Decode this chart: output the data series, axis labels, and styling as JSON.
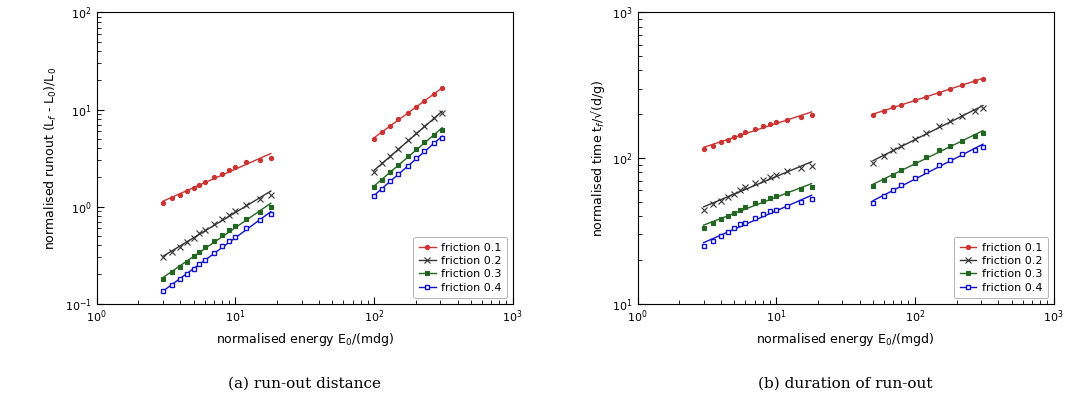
{
  "left": {
    "title": "(a) run-out distance",
    "xlabel": "normalised energy E$_0$/(mdg)",
    "ylabel": "normalised runout (L$_f$ - L$_0$)/L$_0$",
    "xlim": [
      1,
      1000
    ],
    "ylim": [
      0.1,
      100
    ],
    "series": [
      {
        "label": "friction 0.1",
        "color": "#cc3333",
        "marker": "o",
        "markersize": 3,
        "open": false,
        "group1_x": [
          3.0,
          3.5,
          4.0,
          4.5,
          5.0,
          5.5,
          6.0,
          7.0,
          8.0,
          9.0,
          10.0,
          12.0,
          15.0,
          18.0
        ],
        "group1_y": [
          1.1,
          1.22,
          1.33,
          1.45,
          1.57,
          1.68,
          1.8,
          2.0,
          2.18,
          2.37,
          2.55,
          2.85,
          3.05,
          3.2
        ],
        "group2_x": [
          100,
          115,
          130,
          150,
          175,
          200,
          230,
          270,
          310
        ],
        "group2_y": [
          5.0,
          5.9,
          6.8,
          7.9,
          9.3,
          10.7,
          12.3,
          14.3,
          16.5
        ]
      },
      {
        "label": "friction 0.2",
        "color": "#333333",
        "marker": "x",
        "markersize": 5,
        "open": false,
        "group1_x": [
          3.0,
          3.5,
          4.0,
          4.5,
          5.0,
          5.5,
          6.0,
          7.0,
          8.0,
          9.0,
          10.0,
          12.0,
          15.0,
          18.0
        ],
        "group1_y": [
          0.3,
          0.34,
          0.38,
          0.43,
          0.48,
          0.53,
          0.58,
          0.66,
          0.74,
          0.82,
          0.9,
          1.05,
          1.2,
          1.33
        ],
        "group2_x": [
          100,
          115,
          130,
          150,
          175,
          200,
          230,
          270,
          310
        ],
        "group2_y": [
          2.3,
          2.8,
          3.3,
          3.9,
          4.8,
          5.7,
          6.8,
          8.1,
          9.2
        ]
      },
      {
        "label": "friction 0.3",
        "color": "#226622",
        "marker": "s",
        "markersize": 3.5,
        "open": false,
        "group1_x": [
          3.0,
          3.5,
          4.0,
          4.5,
          5.0,
          5.5,
          6.0,
          7.0,
          8.0,
          9.0,
          10.0,
          12.0,
          15.0,
          18.0
        ],
        "group1_y": [
          0.18,
          0.21,
          0.24,
          0.27,
          0.31,
          0.34,
          0.38,
          0.44,
          0.51,
          0.57,
          0.63,
          0.75,
          0.88,
          0.99
        ],
        "group2_x": [
          100,
          115,
          130,
          150,
          175,
          200,
          230,
          270,
          310
        ],
        "group2_y": [
          1.6,
          1.9,
          2.25,
          2.7,
          3.3,
          3.9,
          4.6,
          5.5,
          6.2
        ]
      },
      {
        "label": "friction 0.4",
        "color": "#1111cc",
        "marker": "s",
        "markersize": 3.5,
        "open": true,
        "group1_x": [
          3.0,
          3.5,
          4.0,
          4.5,
          5.0,
          5.5,
          6.0,
          7.0,
          8.0,
          9.0,
          10.0,
          12.0,
          15.0,
          18.0
        ],
        "group1_y": [
          0.135,
          0.155,
          0.178,
          0.202,
          0.228,
          0.255,
          0.282,
          0.335,
          0.39,
          0.44,
          0.49,
          0.6,
          0.72,
          0.83
        ],
        "group2_x": [
          100,
          115,
          130,
          150,
          175,
          200,
          230,
          270,
          310
        ],
        "group2_y": [
          1.28,
          1.53,
          1.82,
          2.17,
          2.65,
          3.15,
          3.75,
          4.5,
          5.1
        ]
      }
    ]
  },
  "right": {
    "title": "(b) duration of run-out",
    "xlabel": "normalised energy E$_0$/(mgd)",
    "ylabel": "normalised time t$_f$/√(d/g)",
    "xlim": [
      1,
      1000
    ],
    "ylim": [
      10,
      1000
    ],
    "series": [
      {
        "label": "friction 0.1",
        "color": "#cc3333",
        "marker": "o",
        "markersize": 3,
        "open": false,
        "group1_x": [
          3.0,
          3.5,
          4.0,
          4.5,
          5.0,
          5.5,
          6.0,
          7.0,
          8.0,
          9.0,
          10.0,
          12.0,
          15.0,
          18.0
        ],
        "group1_y": [
          115,
          122,
          128,
          134,
          140,
          145,
          150,
          158,
          165,
          171,
          176,
          184,
          192,
          198
        ],
        "group2_x": [
          50,
          60,
          70,
          80,
          100,
          120,
          150,
          180,
          220,
          270,
          310
        ],
        "group2_y": [
          198,
          212,
          223,
          233,
          250,
          264,
          282,
          300,
          318,
          337,
          350
        ]
      },
      {
        "label": "friction 0.2",
        "color": "#333333",
        "marker": "x",
        "markersize": 5,
        "open": false,
        "group1_x": [
          3.0,
          3.5,
          4.0,
          4.5,
          5.0,
          5.5,
          6.0,
          7.0,
          8.0,
          9.0,
          10.0,
          12.0,
          15.0,
          18.0
        ],
        "group1_y": [
          44,
          48,
          51,
          54,
          57,
          60,
          63,
          67,
          71,
          74,
          77,
          81,
          85,
          88
        ],
        "group2_x": [
          50,
          60,
          70,
          80,
          100,
          120,
          150,
          180,
          220,
          270,
          310
        ],
        "group2_y": [
          93,
          104,
          113,
          121,
          136,
          149,
          165,
          180,
          196,
          212,
          222
        ]
      },
      {
        "label": "friction 0.3",
        "color": "#226622",
        "marker": "s",
        "markersize": 3.5,
        "open": false,
        "group1_x": [
          3.0,
          3.5,
          4.0,
          4.5,
          5.0,
          5.5,
          6.0,
          7.0,
          8.0,
          9.0,
          10.0,
          12.0,
          15.0,
          18.0
        ],
        "group1_y": [
          33,
          36,
          38,
          40,
          42,
          44,
          46,
          49,
          51,
          53,
          55,
          58,
          61,
          63
        ],
        "group2_x": [
          50,
          60,
          70,
          80,
          100,
          120,
          150,
          180,
          220,
          270,
          310
        ],
        "group2_y": [
          64,
          71,
          77,
          83,
          93,
          102,
          113,
          122,
          132,
          142,
          149
        ]
      },
      {
        "label": "friction 0.4",
        "color": "#1111cc",
        "marker": "s",
        "markersize": 3.5,
        "open": true,
        "group1_x": [
          3.0,
          3.5,
          4.0,
          4.5,
          5.0,
          5.5,
          6.0,
          7.0,
          8.0,
          9.0,
          10.0,
          12.0,
          15.0,
          18.0
        ],
        "group1_y": [
          25,
          27,
          29,
          31,
          33,
          35,
          36,
          39,
          41,
          43,
          44,
          47,
          50,
          52
        ],
        "group2_x": [
          50,
          60,
          70,
          80,
          100,
          120,
          150,
          180,
          220,
          270,
          310
        ],
        "group2_y": [
          49,
          55,
          60,
          65,
          73,
          81,
          90,
          97,
          106,
          114,
          120
        ]
      }
    ]
  },
  "bg_color": "#ffffff",
  "font_size": 9,
  "label_fontsize": 9,
  "tick_fontsize": 8,
  "linewidth": 1.0
}
